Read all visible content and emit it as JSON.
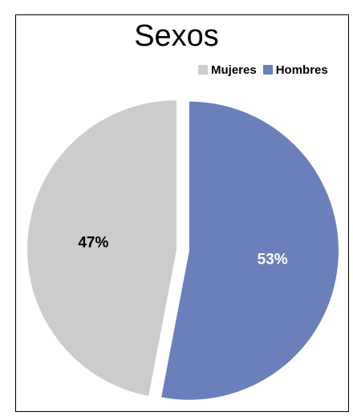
{
  "chart_data": {
    "type": "pie",
    "title": "Sexos",
    "categories": [
      "Mujeres",
      "Hombres"
    ],
    "values": [
      47,
      53
    ],
    "labels": [
      "47%",
      "53%"
    ],
    "colors": [
      "#cccccc",
      "#6b7fbb"
    ],
    "label_colors": [
      "#000000",
      "#ffffff"
    ],
    "legend_position": "top-right"
  }
}
